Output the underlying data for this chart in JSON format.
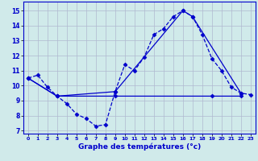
{
  "xlabel": "Graphe des températures (°c)",
  "bg_color": "#d0eaea",
  "grid_color": "#b0b8d0",
  "line_color": "#0000cc",
  "xlim": [
    -0.5,
    23.5
  ],
  "ylim": [
    6.8,
    15.6
  ],
  "yticks": [
    7,
    8,
    9,
    10,
    11,
    12,
    13,
    14,
    15
  ],
  "xticks": [
    0,
    1,
    2,
    3,
    4,
    5,
    6,
    7,
    8,
    9,
    10,
    11,
    12,
    13,
    14,
    15,
    16,
    17,
    18,
    19,
    20,
    21,
    22,
    23
  ],
  "line1_x": [
    0,
    1,
    2,
    3,
    4,
    5,
    6,
    7,
    8,
    9,
    10,
    11,
    12,
    13,
    14,
    15,
    16,
    17,
    18,
    19,
    20,
    21,
    22,
    23
  ],
  "line1_y": [
    10.5,
    10.7,
    9.9,
    9.3,
    8.8,
    8.1,
    7.8,
    7.3,
    7.4,
    9.6,
    11.4,
    11.0,
    11.9,
    13.4,
    13.8,
    14.6,
    15.0,
    14.6,
    13.4,
    11.8,
    11.0,
    9.9,
    9.5,
    9.4
  ],
  "line2_x": [
    0,
    3,
    9,
    16,
    17,
    22
  ],
  "line2_y": [
    10.5,
    9.3,
    9.6,
    15.0,
    14.6,
    9.5
  ],
  "line3_x": [
    0,
    3,
    9,
    19,
    22
  ],
  "line3_y": [
    10.5,
    9.3,
    9.3,
    9.3,
    9.3
  ]
}
